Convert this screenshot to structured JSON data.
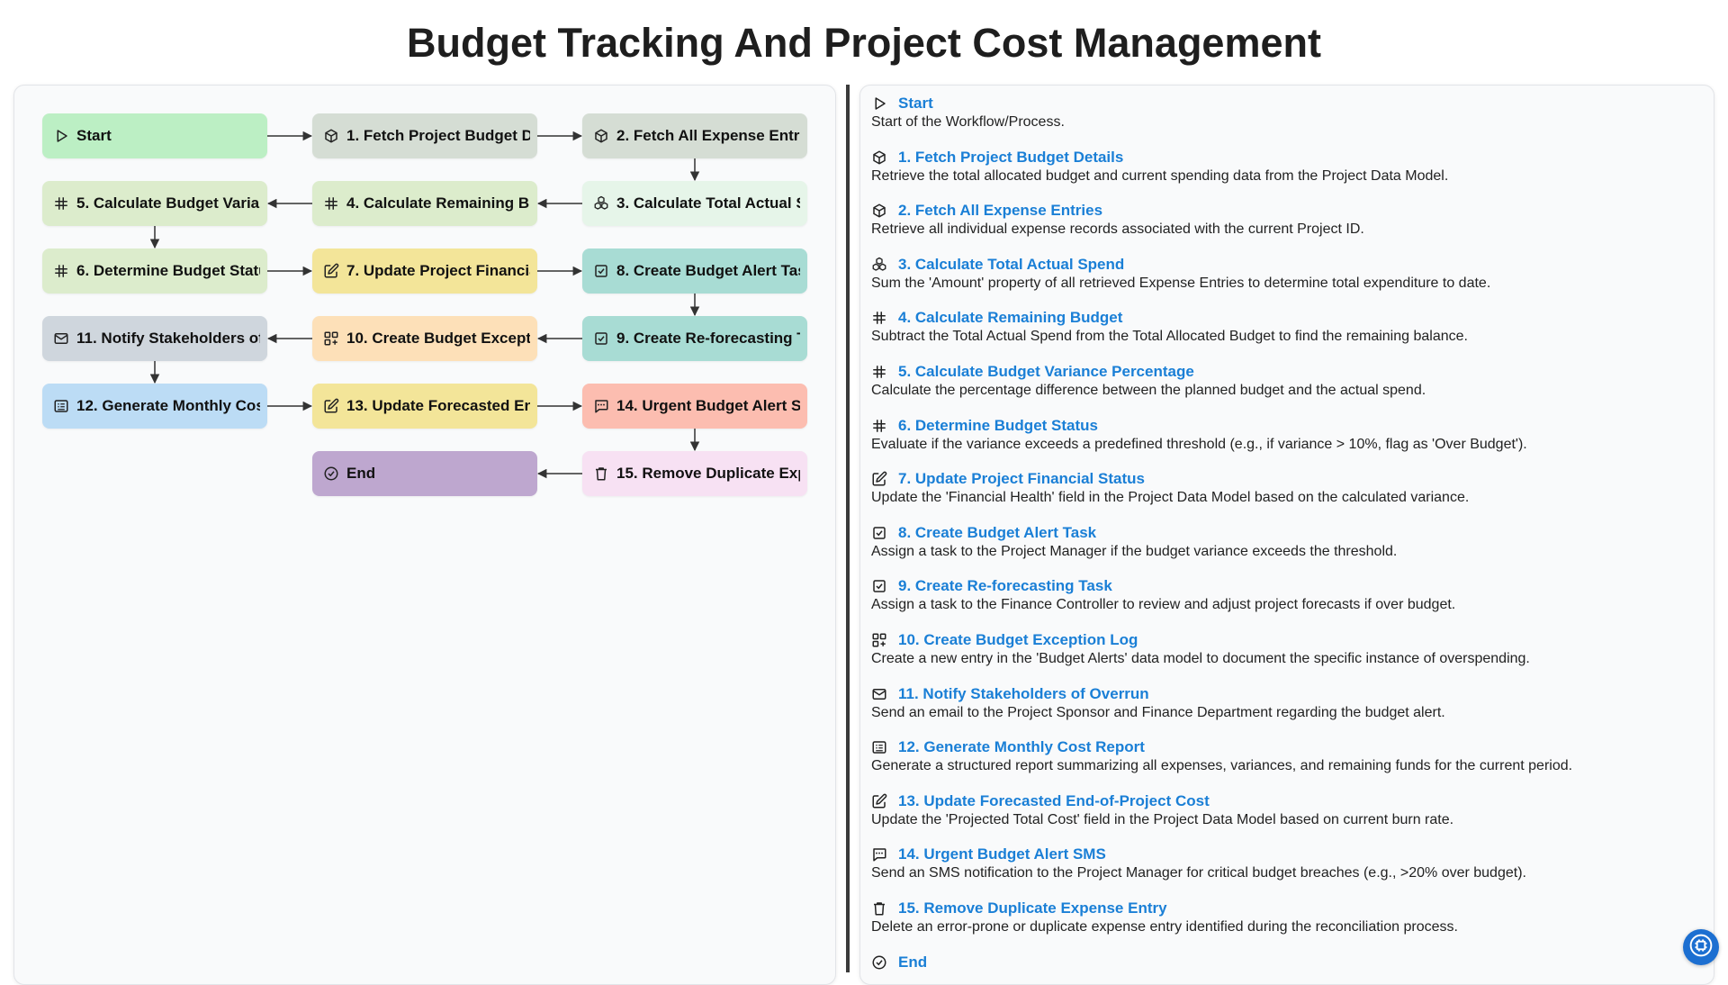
{
  "title": "Budget Tracking And Project Cost Management",
  "colors": {
    "start": "#bcefc4",
    "fetch": "#d5ddd4",
    "fetch2": "#d5ddd4",
    "calc_total": "#e6f5e9",
    "calc": "#dceccc",
    "update": "#f3e599",
    "task": "#a8dcd4",
    "log": "#fde0b8",
    "email": "#cfd6dd",
    "report": "#bcdcf5",
    "sms": "#fcbdb0",
    "remove": "#f7e1f3",
    "end": "#bea7cf",
    "link": "#1a7fd6",
    "fab": "#1c6fd1"
  },
  "nodes": [
    {
      "id": "start",
      "label": "Start",
      "icon": "play-icon",
      "color": "#bcefc4"
    },
    {
      "id": "n1",
      "label": "1. Fetch Project Budget Details",
      "icon": "cube-icon",
      "color": "#d5ddd4"
    },
    {
      "id": "n2",
      "label": "2. Fetch All Expense Entries",
      "icon": "cube-icon",
      "color": "#d5ddd4"
    },
    {
      "id": "n3",
      "label": "3. Calculate Total Actual Spend",
      "icon": "cubes-icon",
      "color": "#e6f5e9"
    },
    {
      "id": "n4",
      "label": "4. Calculate Remaining Budget",
      "icon": "hash-icon",
      "color": "#dceccc"
    },
    {
      "id": "n5",
      "label": "5. Calculate Budget Variance Percentage",
      "icon": "hash-icon",
      "color": "#dceccc"
    },
    {
      "id": "n6",
      "label": "6. Determine Budget Status",
      "icon": "hash-icon",
      "color": "#dceccc"
    },
    {
      "id": "n7",
      "label": "7. Update Project Financial Status",
      "icon": "edit-icon",
      "color": "#f3e599"
    },
    {
      "id": "n8",
      "label": "8. Create Budget Alert Task",
      "icon": "checkbox-icon",
      "color": "#a8dcd4"
    },
    {
      "id": "n9",
      "label": "9. Create Re-forecasting Task",
      "icon": "checkbox-icon",
      "color": "#a8dcd4"
    },
    {
      "id": "n10",
      "label": "10. Create Budget Exception Log",
      "icon": "grid-plus-icon",
      "color": "#fde0b8"
    },
    {
      "id": "n11",
      "label": "11. Notify Stakeholders of Overrun",
      "icon": "mail-icon",
      "color": "#cfd6dd"
    },
    {
      "id": "n12",
      "label": "12. Generate Monthly Cost Report",
      "icon": "report-icon",
      "color": "#bcdcf5"
    },
    {
      "id": "n13",
      "label": "13. Update Forecasted End-of-Project Cost",
      "icon": "edit-icon",
      "color": "#f3e599"
    },
    {
      "id": "n14",
      "label": "14. Urgent Budget Alert SMS",
      "icon": "message-icon",
      "color": "#fcbdb0"
    },
    {
      "id": "n15",
      "label": "15. Remove Duplicate Expense Entry",
      "icon": "trash-icon",
      "color": "#f7e1f3"
    },
    {
      "id": "end",
      "label": "End",
      "icon": "check-circle-icon",
      "color": "#bea7cf"
    }
  ],
  "steps": [
    {
      "title": "Start",
      "icon": "play-icon",
      "desc": "Start of the Workflow/Process."
    },
    {
      "title": "1. Fetch Project Budget Details",
      "icon": "cube-icon",
      "desc": "Retrieve the total allocated budget and current spending data from the Project Data Model."
    },
    {
      "title": "2. Fetch All Expense Entries",
      "icon": "cube-icon",
      "desc": "Retrieve all individual expense records associated with the current Project ID."
    },
    {
      "title": "3. Calculate Total Actual Spend",
      "icon": "cubes-icon",
      "desc": "Sum the 'Amount' property of all retrieved Expense Entries to determine total expenditure to date."
    },
    {
      "title": "4. Calculate Remaining Budget",
      "icon": "hash-icon",
      "desc": "Subtract the Total Actual Spend from the Total Allocated Budget to find the remaining balance."
    },
    {
      "title": "5. Calculate Budget Variance Percentage",
      "icon": "hash-icon",
      "desc": "Calculate the percentage difference between the planned budget and the actual spend."
    },
    {
      "title": "6. Determine Budget Status",
      "icon": "hash-icon",
      "desc": "Evaluate if the variance exceeds a predefined threshold (e.g., if variance > 10%, flag as 'Over Budget')."
    },
    {
      "title": "7. Update Project Financial Status",
      "icon": "edit-icon",
      "desc": "Update the 'Financial Health' field in the Project Data Model based on the calculated variance."
    },
    {
      "title": "8. Create Budget Alert Task",
      "icon": "checkbox-icon",
      "desc": "Assign a task to the Project Manager if the budget variance exceeds the threshold."
    },
    {
      "title": "9. Create Re-forecasting Task",
      "icon": "checkbox-icon",
      "desc": "Assign a task to the Finance Controller to review and adjust project forecasts if over budget."
    },
    {
      "title": "10. Create Budget Exception Log",
      "icon": "grid-plus-icon",
      "desc": "Create a new entry in the 'Budget Alerts' data model to document the specific instance of overspending."
    },
    {
      "title": "11. Notify Stakeholders of Overrun",
      "icon": "mail-icon",
      "desc": "Send an email to the Project Sponsor and Finance Department regarding the budget alert."
    },
    {
      "title": "12. Generate Monthly Cost Report",
      "icon": "report-icon",
      "desc": "Generate a structured report summarizing all expenses, variances, and remaining funds for the current period."
    },
    {
      "title": "13. Update Forecasted End-of-Project Cost",
      "icon": "edit-icon",
      "desc": "Update the 'Projected Total Cost' field in the Project Data Model based on current burn rate."
    },
    {
      "title": "14. Urgent Budget Alert SMS",
      "icon": "message-icon",
      "desc": "Send an SMS notification to the Project Manager for critical budget breaches (e.g., >20% over budget)."
    },
    {
      "title": "15. Remove Duplicate Expense Entry",
      "icon": "trash-icon",
      "desc": "Delete an error-prone or duplicate expense entry identified during the reconciliation process."
    },
    {
      "title": "End",
      "icon": "check-circle-icon",
      "desc": ""
    }
  ],
  "fab_icon": "chip-icon"
}
